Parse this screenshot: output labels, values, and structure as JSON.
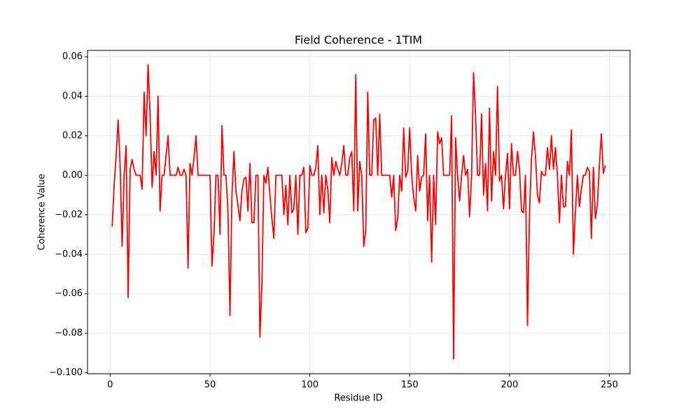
{
  "chart_data": {
    "type": "line",
    "title": "Field Coherence - 1TIM",
    "x_label": "Residue ID",
    "y_label": "Coherence Value",
    "color": "#ff0000",
    "grid": true,
    "xlim": [
      -11.35,
      260.35
    ],
    "ylim": [
      -0.1005,
      0.0632
    ],
    "xticks": [
      0,
      50,
      100,
      150,
      200,
      250
    ],
    "yticks": [
      {
        "value": -0.1,
        "label": "−0.100"
      },
      {
        "value": -0.08,
        "label": "−0.08"
      },
      {
        "value": -0.06,
        "label": "−0.06"
      },
      {
        "value": -0.04,
        "label": "−0.04"
      },
      {
        "value": -0.02,
        "label": "−0.02"
      },
      {
        "value": 0,
        "label": "0.00"
      },
      0.02,
      0.04,
      0.06
    ],
    "x": [
      1,
      2,
      3,
      4,
      5,
      6,
      7,
      8,
      9,
      10,
      11,
      12,
      13,
      14,
      15,
      16,
      17,
      18,
      19,
      20,
      21,
      22,
      23,
      24,
      25,
      26,
      27,
      28,
      29,
      30,
      31,
      32,
      33,
      34,
      35,
      36,
      37,
      38,
      39,
      40,
      41,
      42,
      43,
      44,
      45,
      46,
      47,
      48,
      49,
      50,
      51,
      52,
      53,
      54,
      55,
      56,
      57,
      58,
      59,
      60,
      61,
      62,
      63,
      64,
      65,
      66,
      67,
      68,
      69,
      70,
      71,
      72,
      73,
      74,
      75,
      76,
      77,
      78,
      79,
      80,
      81,
      82,
      83,
      84,
      85,
      86,
      87,
      88,
      89,
      90,
      91,
      92,
      93,
      94,
      95,
      96,
      97,
      98,
      99,
      100,
      101,
      102,
      103,
      104,
      105,
      106,
      107,
      108,
      109,
      110,
      111,
      112,
      113,
      114,
      115,
      116,
      117,
      118,
      119,
      120,
      121,
      122,
      123,
      124,
      125,
      126,
      127,
      128,
      129,
      130,
      131,
      132,
      133,
      134,
      135,
      136,
      137,
      138,
      139,
      140,
      141,
      142,
      143,
      144,
      145,
      146,
      147,
      148,
      149,
      150,
      151,
      152,
      153,
      154,
      155,
      156,
      157,
      158,
      159,
      160,
      161,
      162,
      163,
      164,
      165,
      166,
      167,
      168,
      169,
      170,
      171,
      172,
      173,
      174,
      175,
      176,
      177,
      178,
      179,
      180,
      181,
      182,
      183,
      184,
      185,
      186,
      187,
      188,
      189,
      190,
      191,
      192,
      193,
      194,
      195,
      196,
      197,
      198,
      199,
      200,
      201,
      202,
      203,
      204,
      205,
      206,
      207,
      208,
      209,
      210,
      211,
      212,
      213,
      214,
      215,
      216,
      217,
      218,
      219,
      220,
      221,
      222,
      223,
      224,
      225,
      226,
      227,
      228,
      229,
      230,
      231,
      232,
      233,
      234,
      235,
      236,
      237,
      238,
      239,
      240,
      241,
      242,
      243,
      244,
      245,
      246,
      247,
      248
    ],
    "values": [
      -0.026,
      -0.005,
      0.01,
      0.028,
      0.005,
      -0.036,
      0,
      0.015,
      -0.062,
      0.003,
      0.008,
      0.003,
      0,
      0,
      0,
      -0.007,
      0.042,
      0.02,
      0.056,
      0.03,
      -0.006,
      0.012,
      0,
      0.04,
      -0.018,
      0,
      0,
      0.01,
      0.02,
      0,
      0,
      0,
      0,
      0.004,
      0,
      0,
      0.003,
      0,
      -0.047,
      0.006,
      0,
      0.009,
      0.02,
      0,
      0,
      0,
      0,
      0,
      0,
      0,
      -0.046,
      -0.03,
      0,
      0,
      -0.03,
      0.025,
      0,
      0,
      -0.018,
      -0.071,
      -0.01,
      0.012,
      -0.008,
      -0.015,
      -0.023,
      -0.008,
      -0.002,
      -0.001,
      -0.018,
      0.006,
      -0.024,
      -0.024,
      0,
      0,
      -0.082,
      -0.055,
      0,
      -0.004,
      0.004,
      -0.01,
      -0.022,
      -0.032,
      0,
      0,
      0,
      0,
      -0.02,
      -0.005,
      -0.025,
      0,
      -0.019,
      -0.017,
      0,
      -0.03,
      0,
      0,
      0.004,
      -0.029,
      -0.027,
      0.005,
      0,
      0,
      0.004,
      0.015,
      -0.02,
      0,
      -0.019,
      0,
      -0.007,
      -0.024,
      0.009,
      0,
      0.007,
      0.003,
      0,
      0.006,
      0.015,
      0,
      0,
      0.009,
      0.012,
      -0.018,
      0.051,
      -0.018,
      0.007,
      0,
      -0.036,
      -0.028,
      0.042,
      0,
      0,
      0.028,
      0.029,
      0,
      0.031,
      0,
      0,
      0,
      0,
      0,
      -0.011,
      0,
      -0.028,
      -0.022,
      0,
      -0.008,
      0.024,
      -0.001,
      0.002,
      0.024,
      0,
      -0.011,
      -0.018,
      0.01,
      -0.008,
      -0.001,
      0,
      0.021,
      -0.023,
      0,
      -0.044,
      0,
      -0.025,
      0.022,
      0.016,
      0.019,
      0,
      0,
      0,
      0,
      0.03,
      -0.093,
      0.019,
      0,
      -0.013,
      0,
      0.01,
      0,
      0.003,
      -0.021,
      0,
      0.052,
      0.03,
      0,
      0,
      0.031,
      -0.01,
      0.006,
      -0.018,
      0.034,
      -0.013,
      0.012,
      0,
      0.045,
      -0.003,
      0,
      -0.017,
      0,
      0.011,
      -0.017,
      0.016,
      0,
      0,
      0.012,
      0.003,
      -0.018,
      -0.019,
      0,
      -0.076,
      -0.02,
      0.008,
      0.022,
      0.01,
      -0.01,
      -0.014,
      0.002,
      0,
      0,
      0.014,
      0.003,
      0.02,
      0.003,
      0.014,
      0,
      -0.024,
      0,
      -0.016,
      -0.016,
      0.007,
      0,
      0.023,
      -0.04,
      -0.019,
      0,
      -0.016,
      -0.007,
      0,
      0,
      0.004,
      0.002,
      -0.032,
      0.004,
      -0.022,
      -0.015,
      0.005,
      0.021,
      0.001,
      0.005
    ]
  }
}
